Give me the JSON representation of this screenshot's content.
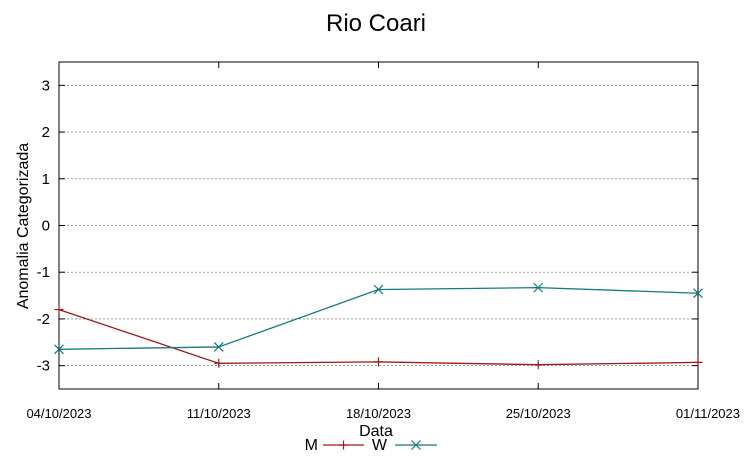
{
  "chart_data": {
    "type": "line",
    "title": "Rio Coari",
    "xlabel": "Data",
    "ylabel": "Anomalia Categorizada",
    "x": [
      "04/10/2023",
      "11/10/2023",
      "18/10/2023",
      "25/10/2023",
      "01/11/2023"
    ],
    "ylim": [
      -3.5,
      3.5
    ],
    "yticks": [
      3,
      2,
      1,
      0,
      -1,
      -2,
      -3
    ],
    "grid": true,
    "legend_position": "bottom",
    "series": [
      {
        "name": "M",
        "color": "#a01818",
        "marker": "plus",
        "values": [
          -1.8,
          -2.95,
          -2.92,
          -2.98,
          -2.93
        ]
      },
      {
        "name": "W",
        "color": "#127a80",
        "marker": "x",
        "values": [
          -2.65,
          -2.6,
          -1.37,
          -1.33,
          -1.45
        ]
      }
    ]
  }
}
